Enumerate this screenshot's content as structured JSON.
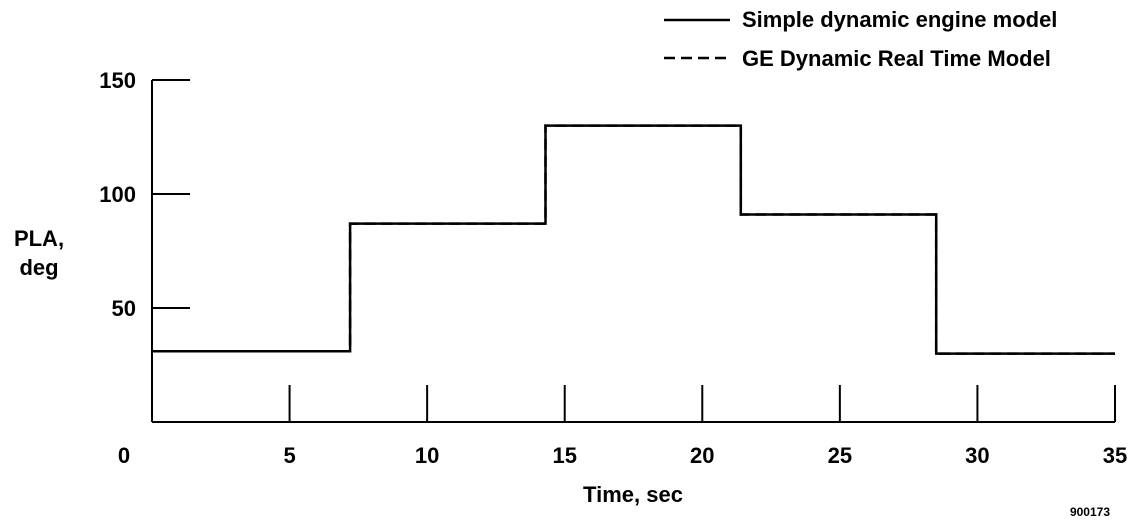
{
  "chart_data": {
    "type": "line",
    "title": "",
    "xlabel": "Time, sec",
    "ylabel": [
      "PLA,",
      "deg"
    ],
    "xlim": [
      0,
      35
    ],
    "ylim": [
      0,
      150
    ],
    "x_ticks": [
      0,
      5,
      10,
      15,
      20,
      25,
      30,
      35
    ],
    "y_ticks": [
      0,
      50,
      100,
      150
    ],
    "x_tick_labels": [
      "0",
      "5",
      "10",
      "15",
      "20",
      "25",
      "30",
      "35"
    ],
    "y_tick_labels": [
      "50",
      "100",
      "150"
    ],
    "grid": false,
    "legend_position": "top-right",
    "series": [
      {
        "name": "Simple dynamic engine model",
        "style": "solid",
        "color": "#000000",
        "x": [
          0,
          7.2,
          7.2,
          14.3,
          14.3,
          21.4,
          21.4,
          28.5,
          28.5,
          35
        ],
        "y": [
          31,
          31,
          87,
          87,
          130,
          130,
          91,
          91,
          30,
          30
        ]
      },
      {
        "name": "GE Dynamic Real Time Model",
        "style": "dashed",
        "color": "#000000",
        "x": [
          0,
          7.2,
          7.2,
          14.3,
          14.3,
          21.4,
          21.4,
          28.5,
          28.5,
          35
        ],
        "y": [
          31,
          31,
          87,
          87,
          130,
          130,
          91,
          91,
          30,
          30
        ]
      }
    ],
    "annotation": "900173"
  }
}
